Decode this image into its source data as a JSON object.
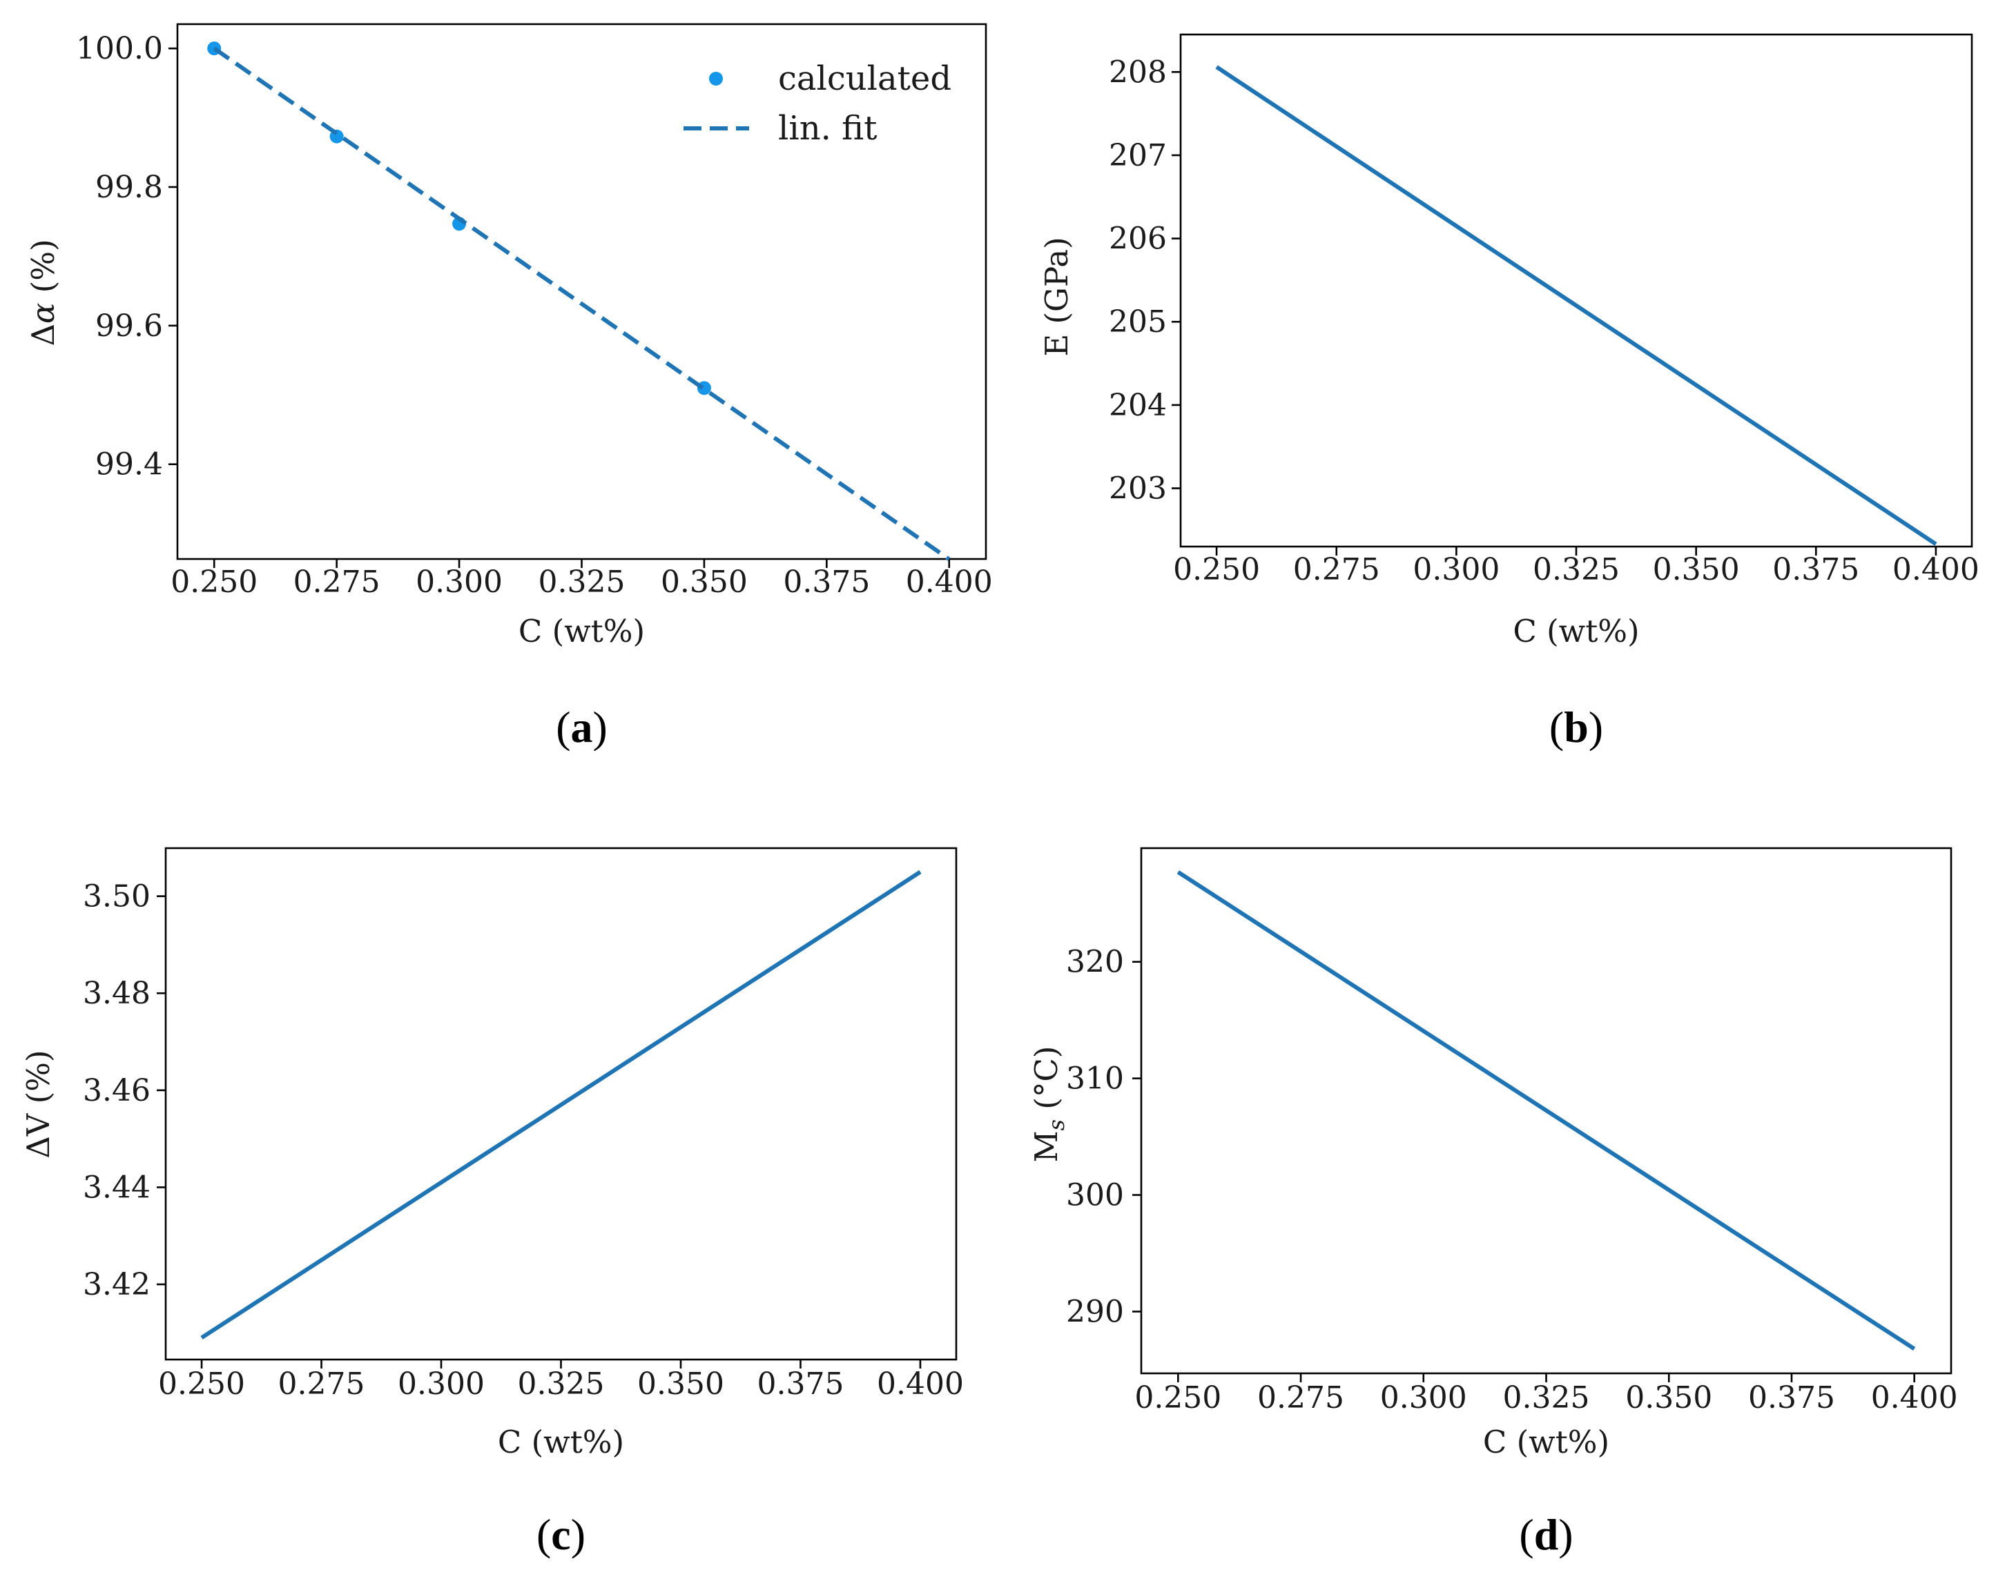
{
  "chart_data": [
    {
      "id": "a",
      "type": "scatter",
      "panel_label": "a",
      "xlabel": "C (wt%)",
      "ylabel_prefix": "Δ",
      "ylabel_symbol": "α",
      "ylabel_suffix": " (%)",
      "xlim": [
        0.2425,
        0.4075
      ],
      "ylim": [
        99.2633,
        100.035
      ],
      "xticks": [
        0.25,
        0.275,
        0.3,
        0.325,
        0.35,
        0.375,
        0.4
      ],
      "xtick_labels": [
        "0.250",
        "0.275",
        "0.300",
        "0.325",
        "0.350",
        "0.375",
        "0.400"
      ],
      "yticks": [
        99.4,
        99.6,
        99.8,
        100.0
      ],
      "ytick_labels": [
        "99.4",
        "99.6",
        "99.8",
        "100.0"
      ],
      "legend_position": "top-right",
      "series": [
        {
          "name": "calculated",
          "style": "markers",
          "x": [
            0.25,
            0.275,
            0.3,
            0.35
          ],
          "y": [
            100.0,
            99.873,
            99.747,
            99.51
          ]
        },
        {
          "name": "lin. fit",
          "style": "dashed",
          "x": [
            0.25,
            0.4
          ],
          "y": [
            100.0,
            99.263
          ]
        }
      ]
    },
    {
      "id": "b",
      "type": "line",
      "panel_label": "b",
      "xlabel": "C (wt%)",
      "ylabel_prefix": "E (GPa)",
      "xlim": [
        0.2425,
        0.4075
      ],
      "ylim": [
        202.3,
        208.45
      ],
      "xticks": [
        0.25,
        0.275,
        0.3,
        0.325,
        0.35,
        0.375,
        0.4
      ],
      "xtick_labels": [
        "0.250",
        "0.275",
        "0.300",
        "0.325",
        "0.350",
        "0.375",
        "0.400"
      ],
      "yticks": [
        203,
        204,
        205,
        206,
        207,
        208
      ],
      "ytick_labels": [
        "203",
        "204",
        "205",
        "206",
        "207",
        "208"
      ],
      "series": [
        {
          "name": "E",
          "style": "solid",
          "x": [
            0.25,
            0.4
          ],
          "y": [
            208.06,
            202.33
          ]
        }
      ]
    },
    {
      "id": "c",
      "type": "line",
      "panel_label": "c",
      "xlabel": "C (wt%)",
      "ylabel_prefix": "ΔV (%)",
      "xlim": [
        0.2425,
        0.4075
      ],
      "ylim": [
        3.4045,
        3.5099
      ],
      "xticks": [
        0.25,
        0.275,
        0.3,
        0.325,
        0.35,
        0.375,
        0.4
      ],
      "xtick_labels": [
        "0.250",
        "0.275",
        "0.300",
        "0.325",
        "0.350",
        "0.375",
        "0.400"
      ],
      "yticks": [
        3.42,
        3.44,
        3.46,
        3.48,
        3.5
      ],
      "ytick_labels": [
        "3.42",
        "3.44",
        "3.46",
        "3.48",
        "3.50"
      ],
      "series": [
        {
          "name": "ΔV",
          "style": "solid",
          "x": [
            0.25,
            0.4
          ],
          "y": [
            3.409,
            3.505
          ]
        }
      ]
    },
    {
      "id": "d",
      "type": "line",
      "panel_label": "d",
      "xlabel": "C (wt%)",
      "ylabel_prefix": "M",
      "ylabel_sub": "s",
      "ylabel_suffix": " (°C)",
      "xlim": [
        0.2425,
        0.4075
      ],
      "ylim": [
        284.7,
        329.75
      ],
      "xticks": [
        0.25,
        0.275,
        0.3,
        0.325,
        0.35,
        0.375,
        0.4
      ],
      "xtick_labels": [
        "0.250",
        "0.275",
        "0.300",
        "0.325",
        "0.350",
        "0.375",
        "0.400"
      ],
      "yticks": [
        290,
        300,
        310,
        320
      ],
      "ytick_labels": [
        "290",
        "300",
        "310",
        "320"
      ],
      "series": [
        {
          "name": "Ms",
          "style": "solid",
          "x": [
            0.25,
            0.4
          ],
          "y": [
            327.7,
            286.8
          ]
        }
      ]
    }
  ],
  "colors": {
    "line": "#1f74b4",
    "marker": "#1596e8",
    "axis": "#000000",
    "text": "#1a1a1a"
  }
}
